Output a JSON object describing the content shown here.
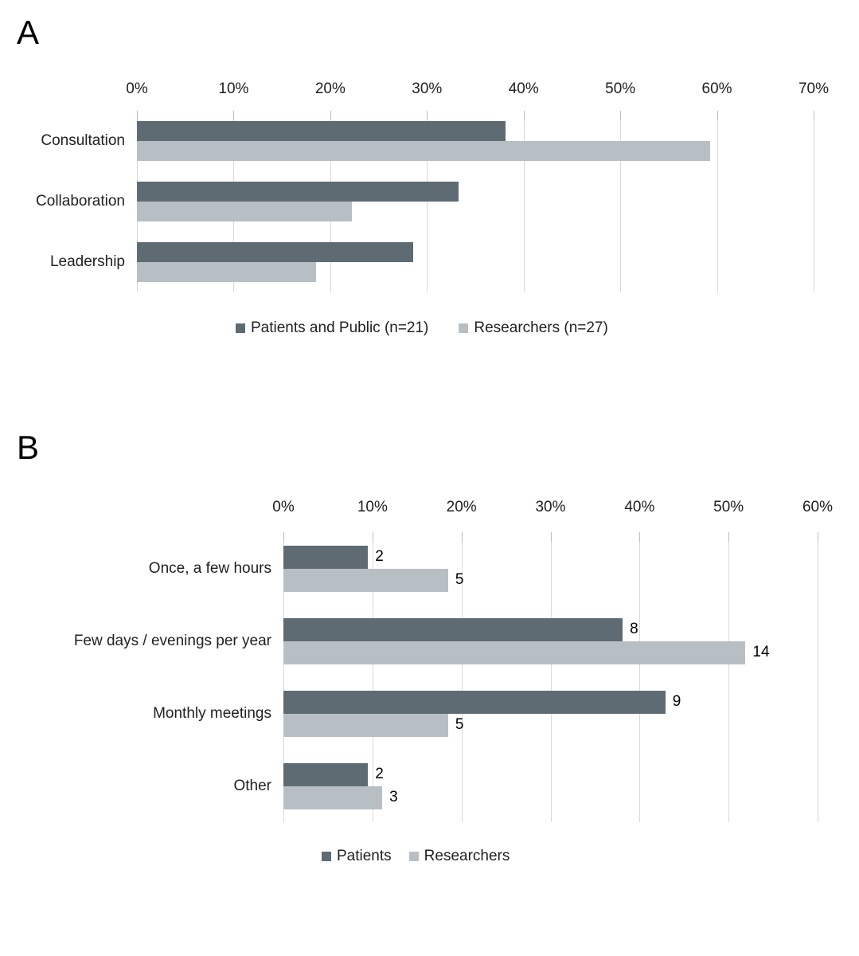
{
  "colors": {
    "dark_series": "#5f6b73",
    "light_series": "#b8bfc4",
    "gridline": "#d9d9d9",
    "tick": "#bdbdbd",
    "axis_text": "#212121",
    "data_label_text": "#000000",
    "panel_letter": "#000000",
    "background": "#ffffff"
  },
  "chart_data": [
    {
      "id": "A",
      "panel_label": "A",
      "type": "bar",
      "orientation": "horizontal-grouped",
      "title": "",
      "categories": [
        "Consultation",
        "Collaboration",
        "Leadership"
      ],
      "series": [
        {
          "name": "Patients and Public (n=21)",
          "role": "dark",
          "values_pct": [
            38.1,
            33.3,
            28.6
          ]
        },
        {
          "name": "Researchers (n=27)",
          "role": "light",
          "values_pct": [
            59.3,
            22.2,
            18.5
          ]
        }
      ],
      "x_ticks": [
        "0%",
        "10%",
        "20%",
        "30%",
        "40%",
        "50%",
        "60%",
        "70%"
      ],
      "x_max_pct": 70,
      "grid": true,
      "legend_position": "bottom-center",
      "legend": [
        {
          "label": "Patients and Public (n=21)",
          "role": "dark"
        },
        {
          "label": "Researchers (n=27)",
          "role": "light"
        }
      ]
    },
    {
      "id": "B",
      "panel_label": "B",
      "type": "bar",
      "orientation": "horizontal-grouped",
      "title": "",
      "categories": [
        "Once, a few hours",
        "Few days / evenings per year",
        "Monthly meetings",
        "Other"
      ],
      "series": [
        {
          "name": "Patients",
          "role": "dark",
          "values_pct": [
            9.5,
            38.1,
            42.9,
            9.5
          ],
          "data_labels": [
            "2",
            "8",
            "9",
            "2"
          ]
        },
        {
          "name": "Researchers",
          "role": "light",
          "values_pct": [
            18.5,
            51.9,
            18.5,
            11.1
          ],
          "data_labels": [
            "5",
            "14",
            "5",
            "3"
          ]
        }
      ],
      "x_ticks": [
        "0%",
        "10%",
        "20%",
        "30%",
        "40%",
        "50%",
        "60%"
      ],
      "x_max_pct": 60,
      "grid": true,
      "legend_position": "bottom-center",
      "legend": [
        {
          "label": "Patients",
          "role": "dark"
        },
        {
          "label": "Researchers",
          "role": "light"
        }
      ]
    }
  ]
}
